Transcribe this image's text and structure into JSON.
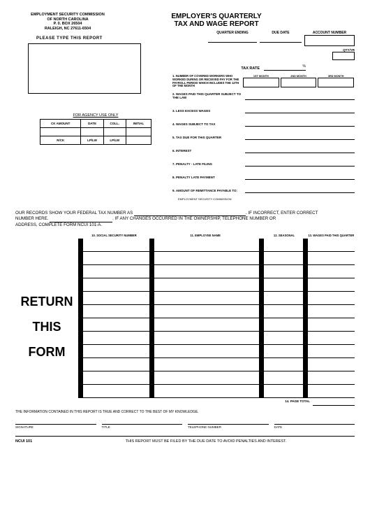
{
  "agency": {
    "line1": "EMPLOYMENT SECURITY COMMISSION",
    "line2": "OF NORTH CAROLINA",
    "line3": "P. 0. BOX 26504",
    "line4": "RALEIGH, NC 27611-6504"
  },
  "title": {
    "line1": "EMPLOYER'S QUARTERLY",
    "line2": "TAX AND WAGE REPORT"
  },
  "please_type": "PLEASE  TYPE  THIS  REPORT",
  "agency_use": {
    "header": "FOR AGENCY USE ONLY",
    "cols": [
      "CK AMOUNT",
      "DATE",
      "COLL.",
      "INITIAL"
    ],
    "row2": [
      "R/CK",
      "LP/LW",
      "LP/LW",
      ""
    ]
  },
  "header_fields": {
    "quarter_ending": "QUARTER ENDING",
    "due_date": "DUE DATE",
    "account_number": "ACCOUNT NUMBER",
    "qty_yr": "QTY/YR",
    "tax_rate": "TAX RATE",
    "percent": "%"
  },
  "workers": {
    "label": "1. NUMBER OF COVERED WORKERS WHO WORKED DURING OR RECEIVED PAY FOR THE PAYROLL PERIOD WHICH INCLUDES THE 12TH OF THE MONTH",
    "m1": "1ST MONTH",
    "m2": "2ND MONTH",
    "m3": "3RD MONTH"
  },
  "lines": {
    "l2": "2. WAGES PAID THIS QUARTER SUBJECT TO THE LAW",
    "l3": "3. LESS EXCESS WAGES",
    "l4": "4. WAGES SUBJECT TO TAX",
    "l5": "5. TAX DUE FOR THIS QUARTER",
    "l6": "6. INTEREST",
    "l7": "7. PENALTY - LATE FILING",
    "l8": "8. PENALTY LATE PAYMENT",
    "l9": "9. AMOUNT OF REMITTANCE PAYABLE TO:",
    "payable_to": "EMPLOYMENT SECURITY COMMISSION"
  },
  "mid": {
    "t1a": "OUR RECORDS SHOW YOUR FEDERAL TAX NUMBER AS ",
    "t1b": ".  IF INCORRECT,  ENTER CORRECT",
    "t2a": "NUMBER HERE. ",
    "t2b": ".  IF ANY CHANGES OCCURRED IN THE OWNERSHIP,  TELEPHONE NUMBER OR",
    "t3": "ADDRESS, COMPLETE FORM NCUI 101-A."
  },
  "wage_headers": {
    "h1": "10. SOCIAL SECURITY NUMBER",
    "h2": "11. EMPLOYEE NAME",
    "h3": "12. SEASONAL",
    "h4": "13. WAGES PAID THIS QUARTER"
  },
  "big_text": {
    "w1": "RETURN",
    "w2": "THIS",
    "w3": "FORM"
  },
  "page_total": "14. PAGE TOTAL",
  "cert": "THE INFORMATION CONTAINED IN THIS REPORT IS TRUE AND CORRECT TO THE BEST OF MY KNOWLEDGE.",
  "sigs": {
    "s1": "SIGNATURE",
    "s2": "TITLE",
    "s3": "TELEPHONE  NUMBER",
    "s4": "DATE"
  },
  "footer": {
    "form_no": "NCUI  101",
    "text": "THIS REPORT MUST BE FILED BY THE DUE DATE TO AVOID PENALTIES AND INTEREST."
  },
  "wage_rows": 12
}
